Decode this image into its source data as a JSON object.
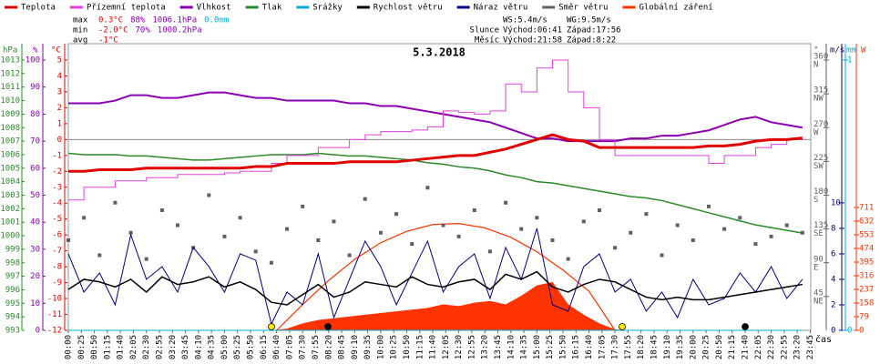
{
  "chart_data": {
    "type": "line",
    "title": "5.3.2018",
    "x_label": "čas",
    "xlim": [
      0,
      1440
    ],
    "xticks": [
      {
        "value": 0,
        "label": "00:00"
      },
      {
        "value": 25,
        "label": "00:25"
      },
      {
        "value": 50,
        "label": "00:50"
      },
      {
        "value": 75,
        "label": "01:15"
      },
      {
        "value": 100,
        "label": "01:40"
      },
      {
        "value": 125,
        "label": "02:05"
      },
      {
        "value": 150,
        "label": "02:30"
      },
      {
        "value": 175,
        "label": "02:55"
      },
      {
        "value": 200,
        "label": "03:20"
      },
      {
        "value": 225,
        "label": "03:45"
      },
      {
        "value": 250,
        "label": "04:10"
      },
      {
        "value": 275,
        "label": "04:35"
      },
      {
        "value": 300,
        "label": "05:00"
      },
      {
        "value": 325,
        "label": "05:25"
      },
      {
        "value": 350,
        "label": "05:50"
      },
      {
        "value": 375,
        "label": "06:15"
      },
      {
        "value": 400,
        "label": "06:40"
      },
      {
        "value": 425,
        "label": "07:05"
      },
      {
        "value": 450,
        "label": "07:30"
      },
      {
        "value": 475,
        "label": "07:55"
      },
      {
        "value": 500,
        "label": "08:20"
      },
      {
        "value": 525,
        "label": "08:45"
      },
      {
        "value": 550,
        "label": "09:10"
      },
      {
        "value": 575,
        "label": "09:35"
      },
      {
        "value": 600,
        "label": "10:00"
      },
      {
        "value": 625,
        "label": "10:25"
      },
      {
        "value": 650,
        "label": "10:50"
      },
      {
        "value": 675,
        "label": "11:15"
      },
      {
        "value": 700,
        "label": "11:40"
      },
      {
        "value": 725,
        "label": "12:05"
      },
      {
        "value": 750,
        "label": "12:30"
      },
      {
        "value": 775,
        "label": "12:55"
      },
      {
        "value": 800,
        "label": "13:20"
      },
      {
        "value": 825,
        "label": "13:45"
      },
      {
        "value": 850,
        "label": "14:10"
      },
      {
        "value": 875,
        "label": "14:35"
      },
      {
        "value": 900,
        "label": "15:00"
      },
      {
        "value": 925,
        "label": "15:25"
      },
      {
        "value": 950,
        "label": "15:50"
      },
      {
        "value": 975,
        "label": "16:15"
      },
      {
        "value": 1000,
        "label": "16:40"
      },
      {
        "value": 1025,
        "label": "17:05"
      },
      {
        "value": 1050,
        "label": "17:30"
      },
      {
        "value": 1075,
        "label": "17:55"
      },
      {
        "value": 1100,
        "label": "18:20"
      },
      {
        "value": 1125,
        "label": "18:45"
      },
      {
        "value": 1150,
        "label": "19:10"
      },
      {
        "value": 1175,
        "label": "19:35"
      },
      {
        "value": 1200,
        "label": "20:00"
      },
      {
        "value": 1225,
        "label": "20:25"
      },
      {
        "value": 1250,
        "label": "20:50"
      },
      {
        "value": 1275,
        "label": "21:15"
      },
      {
        "value": 1300,
        "label": "21:40"
      },
      {
        "value": 1325,
        "label": "22:05"
      },
      {
        "value": 1350,
        "label": "22:30"
      },
      {
        "value": 1375,
        "label": "22:55"
      },
      {
        "value": 1400,
        "label": "23:20"
      },
      {
        "value": 1425,
        "label": "23:45"
      }
    ],
    "axes": {
      "press": {
        "label": "hPa",
        "color": "#2a8a2a",
        "side": "left",
        "lim": [
          993,
          1013
        ],
        "ticks": [
          993,
          994,
          995,
          996,
          997,
          998,
          999,
          1000,
          1001,
          1002,
          1003,
          1004,
          1005,
          1006,
          1007,
          1008,
          1009,
          1010,
          1011,
          1012,
          1013
        ]
      },
      "hum": {
        "label": "%",
        "color": "#8a00b0",
        "side": "left",
        "lim": [
          0,
          100
        ],
        "ticks": [
          0,
          10,
          20,
          30,
          40,
          50,
          60,
          70,
          80,
          90,
          100
        ]
      },
      "temp": {
        "label": "°C",
        "color": "#e00000",
        "side": "left",
        "lim": [
          -12,
          5
        ],
        "ticks": [
          -12,
          -11,
          -10,
          -9,
          -8,
          -7,
          -6,
          -5,
          -4,
          -3,
          -2,
          -1,
          0,
          1,
          2,
          3,
          4,
          5
        ]
      },
      "dir": {
        "label": "°",
        "color": "#606060",
        "side": "right",
        "lim": [
          0,
          360
        ],
        "ticks": [
          45,
          90,
          135,
          180,
          225,
          270,
          315,
          360
        ],
        "tick_names": [
          "NE",
          "E",
          "SE",
          "S",
          "SW",
          "W",
          "NW",
          "N"
        ]
      },
      "wind": {
        "label": "m/s",
        "color": "#000080",
        "side": "right",
        "lim": [
          0,
          21.2
        ],
        "ticks": [
          0,
          2,
          4,
          6,
          8,
          10
        ]
      },
      "rain": {
        "label": "mm",
        "color": "#00b0d0",
        "side": "right",
        "lim": [
          0,
          1
        ],
        "ticks": [
          0,
          1
        ]
      },
      "solar": {
        "label": "W",
        "color": "#ff3300",
        "side": "right",
        "lim": [
          0,
          1564
        ],
        "ticks": [
          0,
          79,
          158,
          237,
          316,
          395,
          474,
          553,
          632,
          711
        ]
      }
    },
    "x": [
      0,
      30,
      60,
      90,
      120,
      150,
      180,
      210,
      240,
      270,
      300,
      330,
      360,
      390,
      420,
      450,
      480,
      510,
      540,
      570,
      600,
      630,
      660,
      690,
      720,
      750,
      780,
      810,
      840,
      870,
      900,
      930,
      960,
      990,
      1020,
      1050,
      1080,
      1110,
      1140,
      1170,
      1200,
      1230,
      1260,
      1290,
      1320,
      1350,
      1380,
      1410
    ],
    "series": [
      {
        "name": "Teplota",
        "color": "#e00000",
        "axis": "temp",
        "style": "line",
        "width": 3,
        "values": [
          -2.0,
          -2.0,
          -1.9,
          -1.9,
          -1.9,
          -1.8,
          -1.8,
          -1.8,
          -1.8,
          -1.8,
          -1.8,
          -1.8,
          -1.7,
          -1.7,
          -1.5,
          -1.5,
          -1.5,
          -1.5,
          -1.4,
          -1.4,
          -1.4,
          -1.4,
          -1.3,
          -1.2,
          -1.1,
          -1.0,
          -1.0,
          -0.8,
          -0.6,
          -0.3,
          0.0,
          0.3,
          0.0,
          -0.1,
          -0.5,
          -0.5,
          -0.5,
          -0.5,
          -0.5,
          -0.5,
          -0.5,
          -0.4,
          -0.4,
          -0.3,
          -0.1,
          0.0,
          0.0,
          0.1
        ]
      },
      {
        "name": "Přízemní teplota",
        "color": "#e040e0",
        "axis": "temp",
        "style": "step",
        "width": 1,
        "values": [
          -3.8,
          -3.0,
          -3.0,
          -2.6,
          -2.6,
          -2.4,
          -2.4,
          -2.2,
          -2.2,
          -2.2,
          -2.1,
          -2.0,
          -2.0,
          -1.5,
          -1.0,
          -1.0,
          -0.5,
          -0.5,
          0.0,
          0.3,
          0.5,
          0.5,
          0.6,
          0.8,
          1.8,
          1.7,
          1.6,
          1.8,
          3.5,
          3.0,
          4.5,
          5.0,
          3.0,
          2.0,
          0.0,
          -1.0,
          -1.0,
          -1.0,
          -1.0,
          -1.0,
          -1.0,
          -1.5,
          -1.0,
          -1.0,
          -0.5,
          -0.3,
          0.0,
          0.0
        ]
      },
      {
        "name": "Vlhkost",
        "color": "#8a00b0",
        "axis": "hum",
        "style": "line",
        "width": 2,
        "values": [
          84,
          84,
          84,
          85,
          87,
          87,
          86,
          86,
          87,
          88,
          88,
          87,
          86,
          86,
          85,
          85,
          85,
          85,
          84,
          84,
          83,
          83,
          82,
          81,
          80,
          79,
          78,
          77,
          75,
          73,
          71,
          71,
          70,
          70,
          70,
          70,
          71,
          71,
          72,
          72,
          73,
          74,
          76,
          78,
          79,
          77,
          76,
          75
        ]
      },
      {
        "name": "Tlak",
        "color": "#2a8a2a",
        "axis": "press",
        "style": "line",
        "width": 1.5,
        "values": [
          1006.1,
          1006.0,
          1006.0,
          1006.0,
          1005.9,
          1005.9,
          1005.8,
          1005.7,
          1005.6,
          1005.6,
          1005.7,
          1005.8,
          1005.9,
          1006.0,
          1006.0,
          1006.0,
          1006.1,
          1006.0,
          1005.9,
          1005.9,
          1005.8,
          1005.7,
          1005.6,
          1005.4,
          1005.3,
          1005.1,
          1005.0,
          1004.8,
          1004.5,
          1004.3,
          1004.0,
          1003.9,
          1003.7,
          1003.5,
          1003.3,
          1003.1,
          1002.9,
          1002.8,
          1002.6,
          1002.3,
          1002.0,
          1001.7,
          1001.4,
          1001.1,
          1000.8,
          1000.6,
          1000.4,
          1000.2
        ]
      },
      {
        "name": "Srážky",
        "color": "#00b0d0",
        "axis": "rain",
        "style": "line",
        "width": 1,
        "values": [
          0,
          0,
          0,
          0,
          0,
          0,
          0,
          0,
          0,
          0,
          0,
          0,
          0,
          0,
          0,
          0,
          0,
          0,
          0,
          0,
          0,
          0,
          0,
          0,
          0,
          0,
          0,
          0,
          0,
          0,
          0,
          0,
          0,
          0,
          0,
          0,
          0,
          0,
          0,
          0,
          0,
          0,
          0,
          0,
          0,
          0,
          0,
          0
        ]
      },
      {
        "name": "Rychlost větru",
        "color": "#000000",
        "axis": "wind",
        "style": "line",
        "width": 1.5,
        "values": [
          3.2,
          4.0,
          3.8,
          3.4,
          4.0,
          3.0,
          4.2,
          3.6,
          3.8,
          4.2,
          3.4,
          3.8,
          3.2,
          2.2,
          2.0,
          2.8,
          3.6,
          2.6,
          3.0,
          3.8,
          3.6,
          3.4,
          4.2,
          3.6,
          3.4,
          3.8,
          4.0,
          3.2,
          4.4,
          4.0,
          4.6,
          3.4,
          3.0,
          3.6,
          4.0,
          3.8,
          3.2,
          2.6,
          2.4,
          2.6,
          2.4,
          2.4,
          2.6,
          2.8,
          3.0,
          3.2,
          3.4,
          3.6
        ]
      },
      {
        "name": "Náraz větru",
        "color": "#000080",
        "axis": "wind",
        "style": "line",
        "width": 1,
        "values": [
          6,
          3,
          4.5,
          2,
          7.5,
          4,
          5,
          3,
          6.5,
          5,
          3,
          6,
          5.5,
          0.5,
          3,
          2,
          6,
          1,
          4,
          7,
          5,
          2,
          4.5,
          7,
          3,
          5,
          6,
          2.5,
          6.5,
          4,
          8,
          2,
          1.5,
          5,
          6,
          3,
          4,
          1.5,
          3,
          1,
          4,
          2,
          2.5,
          4.5,
          3,
          5,
          2.5,
          4
        ]
      },
      {
        "name": "Směr větru",
        "color": "#606060",
        "axis": "dir",
        "style": "scatter",
        "values": [
          120,
          150,
          100,
          170,
          130,
          95,
          160,
          140,
          110,
          180,
          125,
          150,
          105,
          90,
          135,
          165,
          120,
          145,
          100,
          175,
          130,
          155,
          115,
          190,
          140,
          125,
          160,
          105,
          170,
          135,
          150,
          120,
          95,
          145,
          160,
          110,
          130,
          155,
          100,
          140,
          120,
          165,
          135,
          150,
          115,
          125,
          140,
          130
        ]
      },
      {
        "name": "Globální záření",
        "color": "#ff3300",
        "axis": "solar",
        "style": "area",
        "values": [
          0,
          0,
          0,
          0,
          0,
          0,
          0,
          0,
          0,
          0,
          0,
          0,
          0,
          0,
          10,
          40,
          60,
          70,
          80,
          90,
          100,
          110,
          120,
          130,
          150,
          140,
          160,
          170,
          150,
          200,
          260,
          280,
          150,
          90,
          40,
          5,
          0,
          0,
          0,
          0,
          0,
          0,
          0,
          0,
          0,
          0,
          0,
          0
        ]
      }
    ],
    "clear_sky": {
      "color": "#ff3300",
      "axis": "solar",
      "x": [
        400,
        450,
        500,
        550,
        600,
        650,
        700,
        750,
        800,
        850,
        900,
        950,
        1000,
        1050
      ],
      "values": [
        0,
        149,
        289,
        411,
        507,
        573,
        612,
        618,
        593,
        538,
        455,
        349,
        226,
        0
      ]
    },
    "zero_line": {
      "axis": "temp",
      "value": 0
    },
    "stats": {
      "colors": [
        "#e00000",
        "#8a00b0",
        "#8a00b0",
        "#00b0d0"
      ],
      "rows": [
        {
          "label": "max",
          "items": [
            "0.3°C",
            "88%",
            "1006.1hPa",
            "0.0mm"
          ]
        },
        {
          "label": "min",
          "items": [
            "-2.0°C",
            "70%",
            "1000.2hPa"
          ]
        },
        {
          "label": "avg",
          "items": [
            "-1°C"
          ]
        }
      ]
    },
    "info": [
      {
        "label": "",
        "items": [
          "WS:5.4m/s",
          "WG:9.5m/s"
        ]
      },
      {
        "label": "Slunce",
        "items": [
          "Východ:06:41",
          "Západ:17:56"
        ]
      },
      {
        "label": "Měsíc",
        "items": [
          "Východ:21:58",
          "Západ:8:22"
        ]
      }
    ]
  }
}
